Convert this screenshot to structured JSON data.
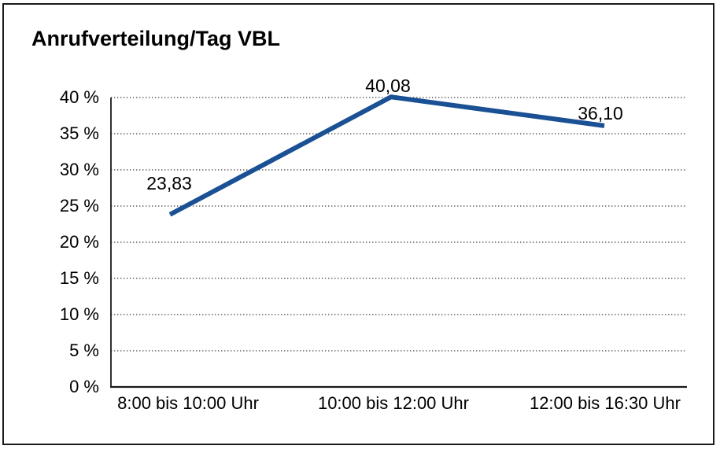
{
  "window": {
    "background": "#ffffff",
    "border_color": "#1a1a1a"
  },
  "chart_data": {
    "type": "line",
    "title": "Anrufverteilung/Tag VBL",
    "categories": [
      "8:00 bis 10:00 Uhr",
      "10:00 bis 12:00 Uhr",
      "12:00 bis 16:30 Uhr"
    ],
    "values": [
      23.83,
      40.08,
      36.1
    ],
    "value_labels": [
      "23,83",
      "40,08",
      "36,10"
    ],
    "ylim": [
      0,
      40
    ],
    "ytick_interval": 5,
    "ytick_labels": [
      "0 %",
      "5 %",
      "10 %",
      "15 %",
      "20 %",
      "25 %",
      "30 %",
      "35 %",
      "40 %"
    ],
    "unit": "%",
    "grid": "horizontal-dotted",
    "legend": "none",
    "line_color": "#1A5094",
    "axis_color": "#1a1a1a",
    "gridline_color": "#3c3c3c",
    "label_color": "#000000"
  }
}
